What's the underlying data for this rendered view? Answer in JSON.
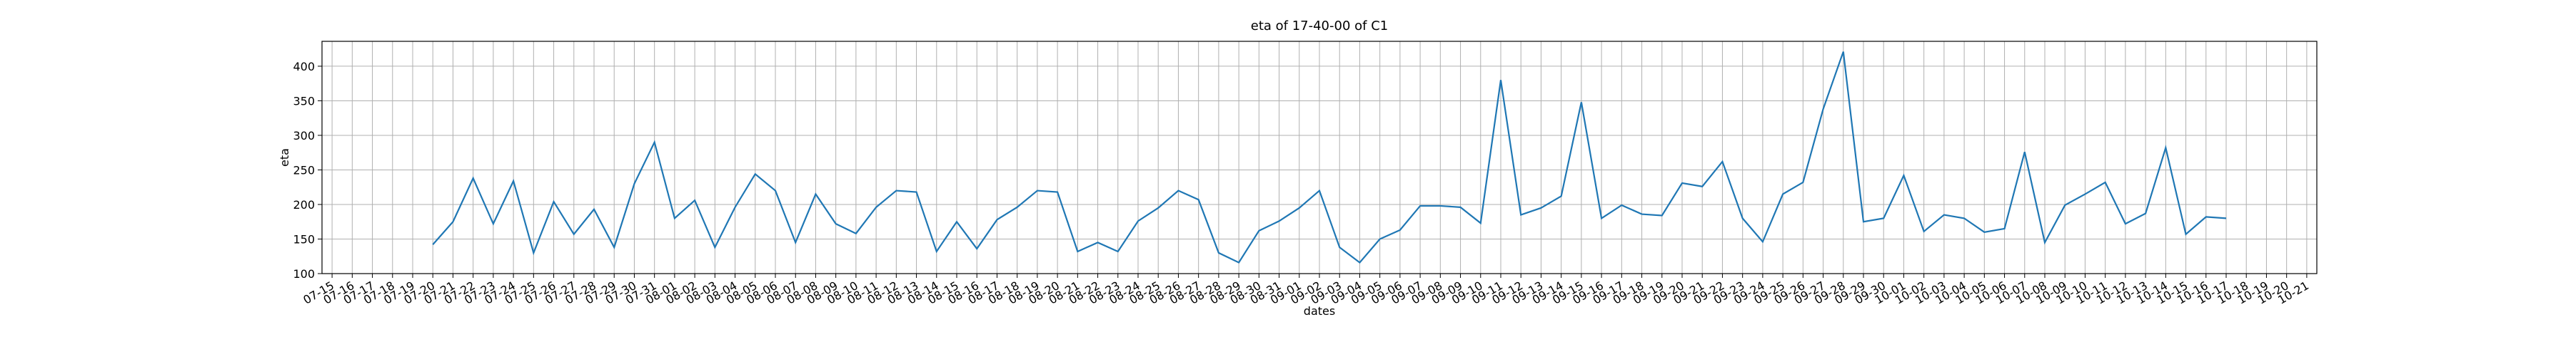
{
  "chart_data": {
    "type": "line",
    "title": "eta of 17-40-00 of C1",
    "x_label": "dates",
    "y_label": "eta",
    "categories": [
      "07-15",
      "07-16",
      "07-17",
      "07-18",
      "07-19",
      "07-20",
      "07-21",
      "07-22",
      "07-23",
      "07-24",
      "07-25",
      "07-26",
      "07-27",
      "07-28",
      "07-29",
      "07-30",
      "07-31",
      "08-01",
      "08-02",
      "08-03",
      "08-04",
      "08-05",
      "08-06",
      "08-07",
      "08-08",
      "08-09",
      "08-10",
      "08-11",
      "08-12",
      "08-13",
      "08-14",
      "08-15",
      "08-16",
      "08-17",
      "08-18",
      "08-19",
      "08-20",
      "08-21",
      "08-22",
      "08-23",
      "08-24",
      "08-25",
      "08-26",
      "08-27",
      "08-28",
      "08-29",
      "08-30",
      "08-31",
      "09-01",
      "09-02",
      "09-03",
      "09-04",
      "09-05",
      "09-06",
      "09-07",
      "09-08",
      "09-09",
      "09-10",
      "09-11",
      "09-12",
      "09-13",
      "09-14",
      "09-15",
      "09-16",
      "09-17",
      "09-18",
      "09-19",
      "09-20",
      "09-21",
      "09-22",
      "09-23",
      "09-24",
      "09-25",
      "09-26",
      "09-27",
      "09-28",
      "09-29",
      "09-30",
      "10-01",
      "10-02",
      "10-03",
      "10-04",
      "10-05",
      "10-06",
      "10-07",
      "10-08",
      "10-09",
      "10-10",
      "10-11",
      "10-12",
      "10-13",
      "10-14",
      "10-15",
      "10-16",
      "10-17",
      "10-18",
      "10-19",
      "10-20",
      "10-21"
    ],
    "series": [
      {
        "name": "eta",
        "color": "#1f77b4",
        "values": [
          null,
          null,
          null,
          null,
          null,
          142,
          175,
          238,
          172,
          234,
          130,
          204,
          157,
          193,
          138,
          230,
          290,
          180,
          206,
          138,
          196,
          244,
          220,
          145,
          215,
          172,
          158,
          196,
          220,
          218,
          132,
          175,
          136,
          178,
          196,
          220,
          218,
          132,
          145,
          132,
          176,
          195,
          220,
          207,
          130,
          116,
          162,
          176,
          195,
          220,
          138,
          116,
          150,
          163,
          198,
          198,
          196,
          173,
          380,
          185,
          195,
          212,
          348,
          180,
          199,
          186,
          184,
          231,
          226,
          262,
          180,
          146,
          215,
          232,
          338,
          421,
          175,
          180,
          242,
          161,
          185,
          180,
          160,
          165,
          276,
          145,
          199,
          215,
          232,
          172,
          187,
          282,
          157,
          182,
          180,
          null,
          null,
          null,
          null
        ]
      }
    ],
    "ylim": [
      100,
      436
    ],
    "yticks": [
      100,
      150,
      200,
      250,
      300,
      350,
      400
    ],
    "grid": true
  }
}
